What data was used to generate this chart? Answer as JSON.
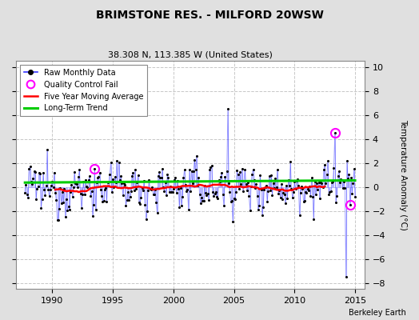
{
  "title": "BRIMSTONE RES. - MILFORD 20WSW",
  "subtitle": "38.308 N, 113.385 W (United States)",
  "ylabel": "Temperature Anomaly (°C)",
  "credit": "Berkeley Earth",
  "xlim": [
    1987.0,
    2015.8
  ],
  "ylim": [
    -8.5,
    10.5
  ],
  "yticks": [
    -8,
    -6,
    -4,
    -2,
    0,
    2,
    4,
    6,
    8,
    10
  ],
  "xticks": [
    1990,
    1995,
    2000,
    2005,
    2010,
    2015
  ],
  "bg_color": "#e0e0e0",
  "plot_bg_color": "#ffffff",
  "grid_color": "#c8c8c8",
  "line_color": "#3333ff",
  "stem_color": "#aaaaff",
  "dot_color": "#000000",
  "ma_color": "#ff0000",
  "trend_color": "#00cc00",
  "qc_color": "#ff00ff",
  "seed": 12345,
  "start_year": 1987.75,
  "end_year": 2015.0
}
